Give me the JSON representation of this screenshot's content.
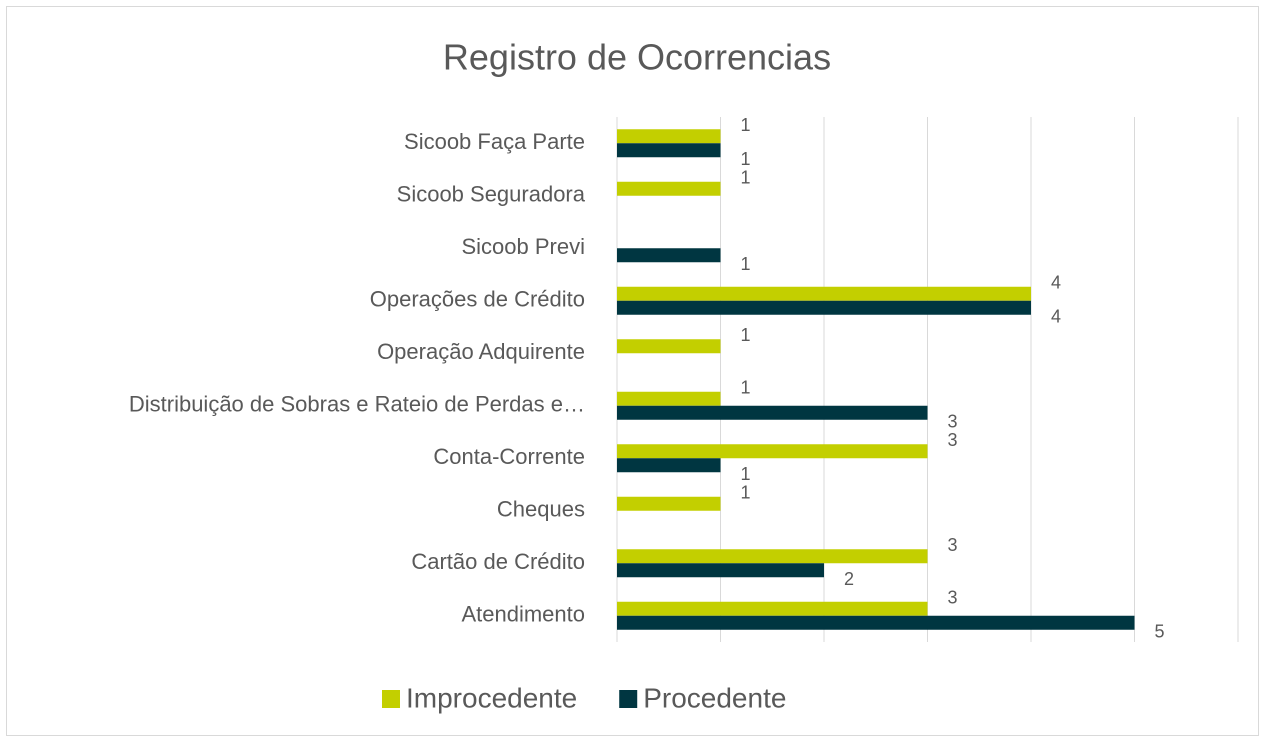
{
  "chart_data": {
    "type": "hbar",
    "title": "Registro de Ocorrencias",
    "categories": [
      "Sicoob Faça Parte",
      "Sicoob Seguradora",
      "Sicoob Previ",
      "Operações de Crédito",
      "Operação Adquirente",
      "Distribuição de Sobras e Rateio de Perdas e…",
      "Conta-Corrente",
      "Cheques",
      "Cartão de Crédito",
      "Atendimento"
    ],
    "series": [
      {
        "name": "Improcedente",
        "color": "#c3cf00",
        "values": [
          1,
          1,
          null,
          4,
          1,
          1,
          3,
          1,
          3,
          3
        ]
      },
      {
        "name": "Procedente",
        "color": "#003641",
        "values": [
          1,
          null,
          1,
          4,
          null,
          3,
          1,
          null,
          2,
          5
        ]
      }
    ],
    "xlim": [
      0,
      6
    ],
    "xticks": [
      0,
      1,
      2,
      3,
      4,
      5,
      6
    ],
    "grid": true,
    "legend": "bottom"
  }
}
